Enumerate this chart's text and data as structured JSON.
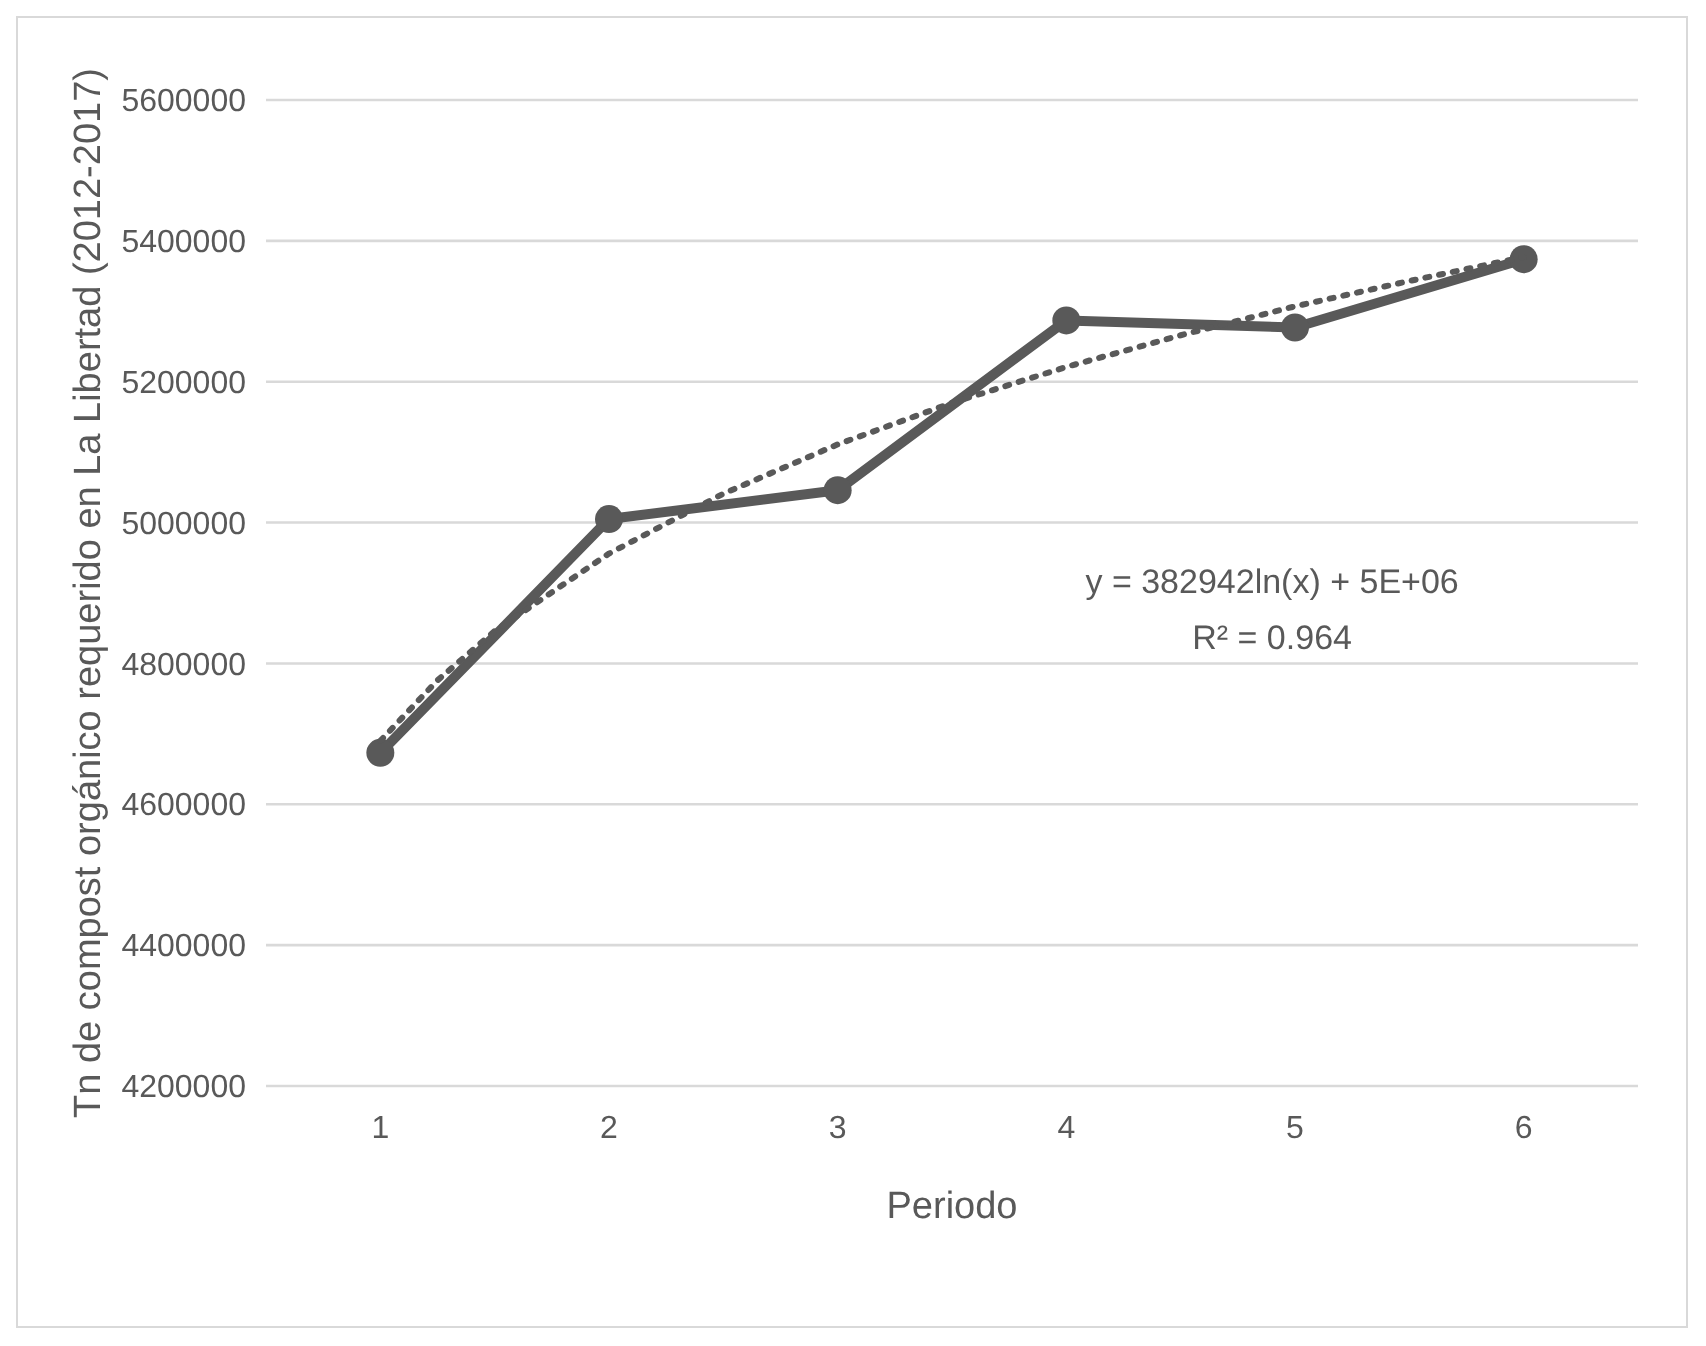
{
  "chart_data": {
    "type": "line",
    "xlabel": "Periodo",
    "ylabel": "Tn de compost orgánico requerido en La Libertad (2012-2017)",
    "x": [
      1,
      2,
      3,
      4,
      5,
      6
    ],
    "xlim": [
      0.5,
      6.5
    ],
    "xticks": [
      1,
      2,
      3,
      4,
      5,
      6
    ],
    "ylim": [
      4200000,
      5600000
    ],
    "yticks": [
      4200000,
      4400000,
      4600000,
      4800000,
      5000000,
      5200000,
      5400000,
      5600000
    ],
    "grid": "y",
    "series": [
      {
        "color": "#595959",
        "values": [
          4673000,
          5005000,
          5046000,
          5287000,
          5277000,
          5374000
        ],
        "marker": "circle",
        "line_style": "solid"
      },
      {
        "type": "line",
        "color": "#595959",
        "x": [
          1,
          1.25,
          1.5,
          2,
          2.5,
          3,
          3.5,
          4,
          4.5,
          5,
          5.5,
          6
        ],
        "values": [
          4690000,
          4776000,
          4846000,
          4956000,
          5041000,
          5111000,
          5170000,
          5221000,
          5266000,
          5307000,
          5343000,
          5377000
        ],
        "marker": "none",
        "line_style": "dotted"
      }
    ],
    "annotations": [
      "y = 382942ln(x) + 5E+06",
      "R² = 0.964"
    ]
  }
}
